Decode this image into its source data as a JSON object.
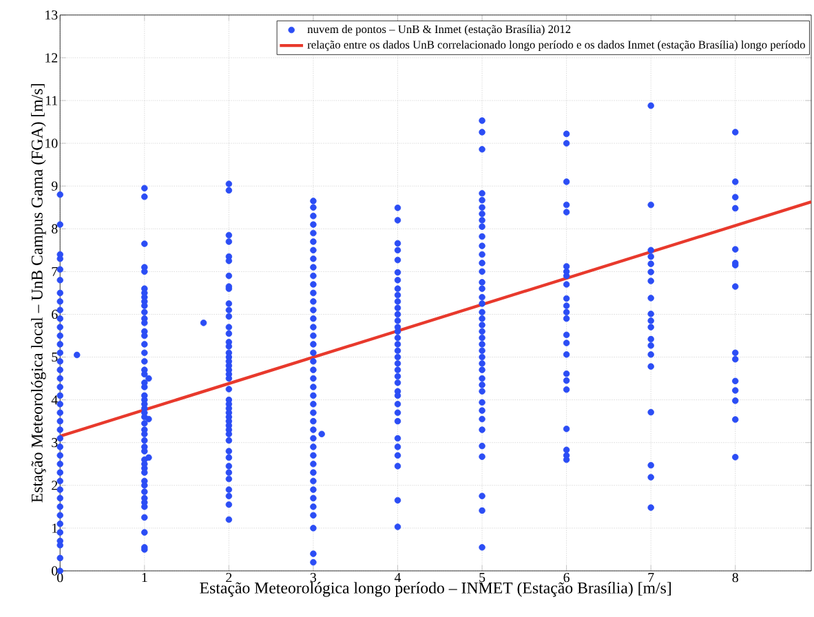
{
  "chart_data": {
    "type": "scatter",
    "xlabel": "Estação Meteorológica longo período – INMET (Estação Brasília) [m/s]",
    "ylabel": "Estação Meteorológica local – UnB Campus Gama (FGA) [m/s]",
    "xlim": [
      0,
      8.9
    ],
    "ylim": [
      0,
      13
    ],
    "xticks": [
      0,
      1,
      2,
      3,
      4,
      5,
      6,
      7,
      8
    ],
    "yticks": [
      0,
      1,
      2,
      3,
      4,
      5,
      6,
      7,
      8,
      9,
      10,
      11,
      12,
      13
    ],
    "grid": true,
    "legend": "top right",
    "marker": "circle",
    "series": [
      {
        "name": "nuvem de pontos – UnB & Inmet (estação Brasília) 2012",
        "color": "#2b4df5",
        "x": [
          0,
          0,
          0,
          0,
          0,
          0,
          0,
          0,
          0,
          0,
          0,
          0,
          0,
          0,
          0,
          0,
          0,
          0,
          0,
          0,
          0,
          0,
          0,
          0,
          0,
          0,
          0,
          0,
          0,
          0,
          0,
          0,
          0,
          0,
          0,
          0,
          0,
          0,
          0,
          1,
          1,
          1,
          1,
          1,
          1,
          1,
          1,
          1,
          1,
          1,
          1,
          1,
          1,
          1,
          1,
          1,
          1,
          1,
          1,
          1,
          1,
          1,
          1,
          1,
          1,
          1,
          1,
          1,
          1,
          1,
          1,
          1,
          1,
          1,
          1,
          1,
          1,
          1,
          1,
          1,
          1,
          1,
          1,
          1,
          1,
          1,
          1,
          2,
          2,
          2,
          2,
          2,
          2,
          2,
          2,
          2,
          2,
          2,
          2,
          2,
          2,
          2,
          2,
          2,
          2,
          2,
          2,
          2,
          2,
          2,
          2,
          2,
          2,
          2,
          2,
          2,
          2,
          2,
          2,
          2,
          2,
          2,
          2,
          2,
          2,
          2,
          2,
          2,
          2,
          2,
          3,
          3,
          3,
          3,
          3,
          3,
          3,
          3,
          3,
          3,
          3,
          3,
          3,
          3,
          3,
          3,
          3,
          3,
          3,
          3,
          3,
          3,
          3,
          3,
          3,
          3,
          3,
          3,
          3,
          3,
          3,
          3,
          3,
          3,
          3,
          3,
          3,
          3,
          3,
          3,
          3,
          4,
          4,
          4,
          4,
          4,
          4,
          4,
          4,
          4,
          4,
          4,
          4,
          4,
          4,
          4,
          4,
          4,
          4,
          4,
          4,
          4,
          4,
          4,
          4,
          4,
          4,
          4,
          4,
          4,
          4,
          4,
          4,
          4,
          4,
          5,
          5,
          5,
          5,
          5,
          5,
          5,
          5,
          5,
          5,
          5,
          5,
          5,
          5,
          5,
          5,
          5,
          5,
          5,
          5,
          5,
          5,
          5,
          5,
          5,
          5,
          5,
          5,
          5,
          5,
          5,
          5,
          5,
          5,
          5,
          5,
          5,
          5,
          5,
          5,
          6,
          6,
          6,
          6,
          6,
          6,
          6,
          6,
          6,
          6,
          6,
          6,
          6,
          6,
          6,
          6,
          6,
          6,
          6,
          6,
          6,
          6,
          6,
          7,
          7,
          7,
          7,
          7,
          7,
          7,
          7,
          7,
          7,
          7,
          7,
          7,
          7,
          7,
          7,
          7,
          7,
          7,
          8,
          8,
          8,
          8,
          8,
          8,
          8,
          8,
          8,
          8,
          8,
          8,
          8,
          8,
          8,
          0.2,
          1.7,
          1.05,
          1.05,
          1.05,
          3.1
        ],
        "values": [
          0,
          0.3,
          0.6,
          0.7,
          0.9,
          1.1,
          1.3,
          1.5,
          1.7,
          1.9,
          2.1,
          2.3,
          2.5,
          2.7,
          2.9,
          3.1,
          3.3,
          3.5,
          3.7,
          3.9,
          4.1,
          4.3,
          4.5,
          4.7,
          4.9,
          5.1,
          5.3,
          5.5,
          5.7,
          5.9,
          6.1,
          6.3,
          6.5,
          6.8,
          7.05,
          7.3,
          7.4,
          8.1,
          8.8,
          8.95,
          8.75,
          7.65,
          7.1,
          7.0,
          6.6,
          6.5,
          6.4,
          6.3,
          6.2,
          6.05,
          5.9,
          5.8,
          5.6,
          5.5,
          5.3,
          5.1,
          4.9,
          4.7,
          4.6,
          4.4,
          4.3,
          4.1,
          4.0,
          3.9,
          3.8,
          3.7,
          3.6,
          3.45,
          3.3,
          3.2,
          3.05,
          2.9,
          2.8,
          2.6,
          2.5,
          2.4,
          2.3,
          2.1,
          2.0,
          1.85,
          1.7,
          1.6,
          1.5,
          1.25,
          0.9,
          0.55,
          0.5,
          9.05,
          8.9,
          7.85,
          7.7,
          7.35,
          7.25,
          6.9,
          6.65,
          6.6,
          6.25,
          6.1,
          5.95,
          5.7,
          5.55,
          5.35,
          5.25,
          5.1,
          5.0,
          4.9,
          4.8,
          4.7,
          4.6,
          4.5,
          4.25,
          4.0,
          3.9,
          3.8,
          3.7,
          3.6,
          3.5,
          3.4,
          3.3,
          3.2,
          3.05,
          2.8,
          2.65,
          2.45,
          2.3,
          2.15,
          1.9,
          1.75,
          1.55,
          1.2,
          0.2,
          0.4,
          1.0,
          1.3,
          1.5,
          1.7,
          1.9,
          2.1,
          2.3,
          2.5,
          2.7,
          2.9,
          3.1,
          3.3,
          3.5,
          3.7,
          3.9,
          4.1,
          4.3,
          4.5,
          4.7,
          4.9,
          5.1,
          5.3,
          5.5,
          5.7,
          5.9,
          6.1,
          6.3,
          6.5,
          6.7,
          6.9,
          7.1,
          7.3,
          7.5,
          7.7,
          7.9,
          8.1,
          8.3,
          8.5,
          8.65,
          8.49,
          8.2,
          7.66,
          7.5,
          7.27,
          6.98,
          6.8,
          6.6,
          6.45,
          6.3,
          6.15,
          6.0,
          5.85,
          5.7,
          5.6,
          5.45,
          5.3,
          5.15,
          5.0,
          4.85,
          4.7,
          4.55,
          4.4,
          4.2,
          4.1,
          3.9,
          3.7,
          3.5,
          3.1,
          2.9,
          2.7,
          2.45,
          1.65,
          1.03,
          10.53,
          10.26,
          9.86,
          8.83,
          8.67,
          8.5,
          8.35,
          8.2,
          8.05,
          7.82,
          7.6,
          7.4,
          7.2,
          7.0,
          6.75,
          6.6,
          6.4,
          6.25,
          6.05,
          5.9,
          5.75,
          5.6,
          5.45,
          5.3,
          5.15,
          5.0,
          4.85,
          4.7,
          4.5,
          4.35,
          4.2,
          3.94,
          3.75,
          3.55,
          3.3,
          2.92,
          2.67,
          1.75,
          1.41,
          0.55,
          10.22,
          10.0,
          9.1,
          8.56,
          8.39,
          7.12,
          7.0,
          6.9,
          6.7,
          6.37,
          6.2,
          6.05,
          5.9,
          5.52,
          5.33,
          5.06,
          4.61,
          4.45,
          4.24,
          3.32,
          2.83,
          2.7,
          2.6,
          10.88,
          8.56,
          7.5,
          7.35,
          7.18,
          6.99,
          6.78,
          6.38,
          6.01,
          5.85,
          5.7,
          5.42,
          5.27,
          5.06,
          4.78,
          3.71,
          2.47,
          2.19,
          1.48,
          10.26,
          9.1,
          8.74,
          8.48,
          7.52,
          7.2,
          7.15,
          6.65,
          5.1,
          4.95,
          4.44,
          4.22,
          3.98,
          3.54,
          2.66,
          5.05,
          5.8,
          4.5,
          3.55,
          2.65,
          3.2
        ]
      },
      {
        "name": "relação entre os dados UnB correlacionado longo período e os dados Inmet (estação Brasília) longo período",
        "type": "line",
        "color": "#e8392c",
        "marker": "none",
        "line_style": "solid",
        "x": [
          0,
          8.9
        ],
        "values": [
          3.15,
          8.63
        ]
      }
    ]
  }
}
